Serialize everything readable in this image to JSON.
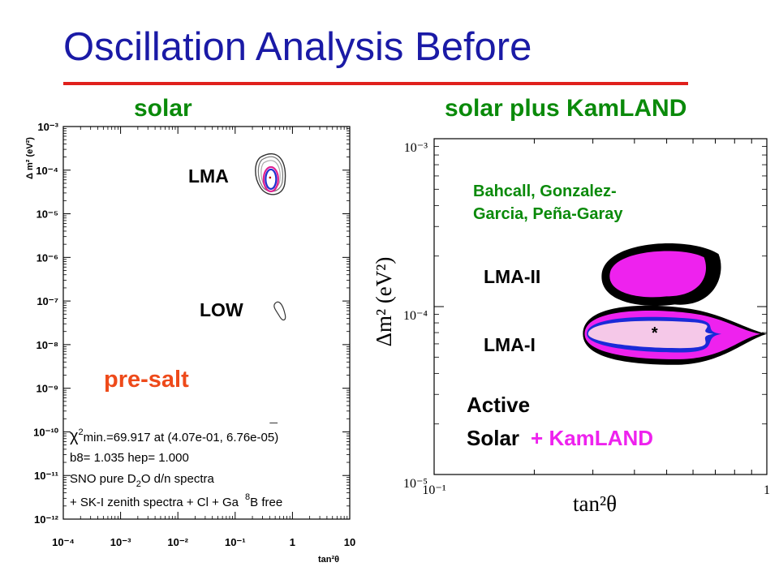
{
  "slide": {
    "title": "Oscillation Analysis Before",
    "colors": {
      "title": "#1a1aa6",
      "rule": "#e0201c",
      "subtitle": "#0a8a0a"
    }
  },
  "left_panel": {
    "heading": "solar",
    "labels": {
      "lma": "LMA",
      "low": "LOW",
      "presalt": "pre-salt"
    },
    "fit_info": {
      "line1_prefix": "χ",
      "line1_sup": "2",
      "line1_rest": "min.=69.917 at (4.07e-01, 6.76e-05)",
      "line2": "b8= 1.035 hep= 1.000",
      "line3_a": "SNO pure D",
      "line3_sub": "2",
      "line3_b": "O d/n spectra",
      "line4_a": "+ SK-I zenith spectra + Cl + Ga",
      "line4_sup": "8",
      "line4_b": "B free"
    }
  },
  "right_panel": {
    "heading": "solar plus KamLAND",
    "authors_line1": "Bahcall, Gonzalez-",
    "authors_line2": "Garcia, Peña-Garay",
    "labels": {
      "lma2": "LMA-II",
      "lma1": "LMA-I"
    },
    "legend": {
      "line1": "Active",
      "line2a": "Solar",
      "line2b": "+ KamLAND"
    },
    "best_fit_marker": "*"
  },
  "chart_data": [
    {
      "type": "contour",
      "title": "solar",
      "xlabel": "tan²θ",
      "ylabel": "Δ m² (eV²)",
      "x_scale": "log",
      "y_scale": "log",
      "xlim": [
        0.0001,
        10
      ],
      "ylim": [
        1e-12,
        0.001
      ],
      "x_ticks": [
        "10⁻⁴",
        "10⁻³",
        "10⁻²",
        "10⁻¹",
        "1",
        "10"
      ],
      "y_ticks": [
        "10⁻³",
        "10⁻⁴",
        "10⁻⁵",
        "10⁻⁶",
        "10⁻⁷",
        "10⁻⁸",
        "10⁻⁹",
        "10⁻¹⁰",
        "10⁻¹¹",
        "10⁻¹²"
      ],
      "best_fit": {
        "x": 0.407,
        "y": 6.76e-05
      },
      "regions": [
        {
          "name": "LMA",
          "x_range": [
            0.28,
            0.75
          ],
          "y_range": [
            1.7e-05,
            0.00045
          ]
        },
        {
          "name": "LOW",
          "x_range": [
            0.4,
            0.9
          ],
          "y_range": [
            2.5e-08,
            1.4e-07
          ]
        }
      ],
      "colors": {
        "contour_outer": "#555555",
        "contour_mid": "#e02090",
        "contour_inner": "#2030d0"
      }
    },
    {
      "type": "contour",
      "title": "solar plus KamLAND",
      "xlabel": "tan²θ",
      "ylabel": "Δm² (eV²)",
      "x_scale": "log",
      "y_scale": "log",
      "xlim": [
        0.1,
        1
      ],
      "ylim": [
        1e-05,
        0.001
      ],
      "x_ticks": [
        "10⁻¹",
        "1"
      ],
      "y_ticks": [
        "10⁻³",
        "10⁻⁴",
        "10⁻⁵"
      ],
      "best_fit": {
        "x": 0.46,
        "y": 7.1e-05
      },
      "regions": [
        {
          "name": "LMA-II",
          "x_range": [
            0.33,
            0.7
          ],
          "y_range": [
            0.000115,
            0.000215
          ]
        },
        {
          "name": "LMA-I",
          "x_range": [
            0.28,
            1.0
          ],
          "y_range": [
            4.5e-05,
            0.000105
          ]
        }
      ],
      "colors": {
        "cl_99_73": "#000000",
        "cl_99": "#ee22ee",
        "cl_95": "#1a2ad8",
        "cl_90": "#f5c8e8",
        "kamland": "#ee22ee"
      }
    }
  ]
}
